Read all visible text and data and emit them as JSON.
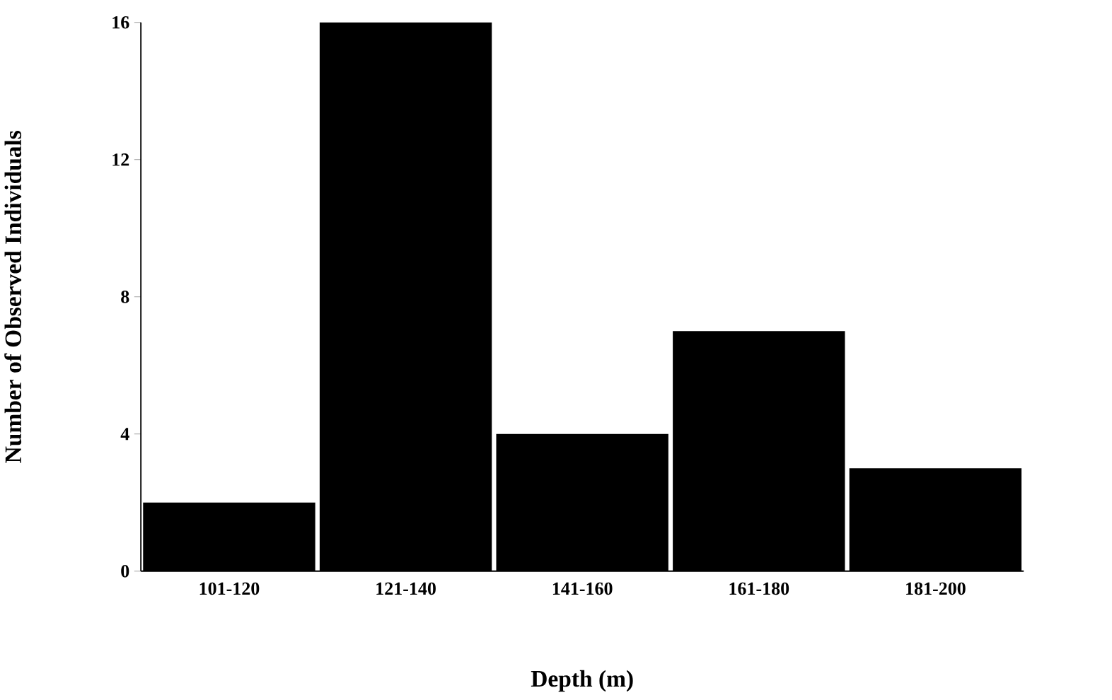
{
  "chart_data": {
    "type": "bar",
    "xlabel": "Depth (m)",
    "ylabel": "Number of Observed Individuals",
    "categories": [
      "101-120",
      "121-140",
      "141-160",
      "161-180",
      "181-200"
    ],
    "values": [
      2,
      16,
      4,
      7,
      3
    ],
    "color": "#000000",
    "ylim": [
      0,
      16
    ],
    "yticks": [
      0,
      4,
      8,
      12,
      16
    ]
  }
}
